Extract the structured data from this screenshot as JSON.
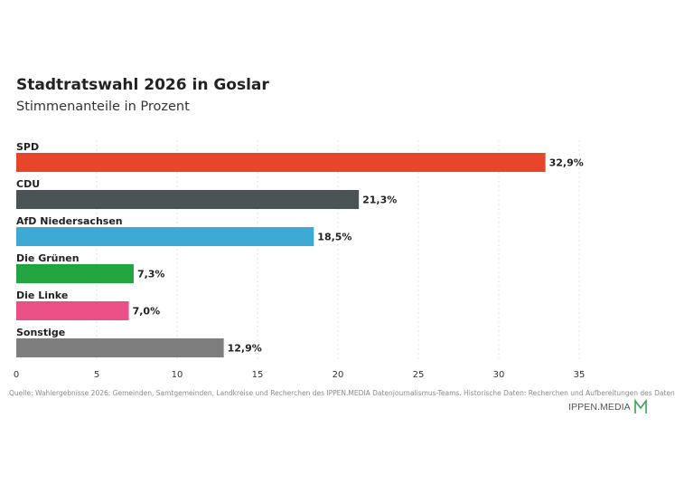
{
  "header": {
    "title": "Stadtratswahl 2026 in Goslar",
    "subtitle": "Stimmenanteile in Prozent"
  },
  "chart_data": {
    "type": "bar",
    "orientation": "horizontal",
    "title": "Stadtratswahl 2026 in Goslar",
    "subtitle": "Stimmenanteile in Prozent",
    "categories": [
      "SPD",
      "CDU",
      "AfD Niedersachsen",
      "Die Grünen",
      "Die Linke",
      "Sonstige"
    ],
    "values": [
      32.9,
      21.3,
      18.5,
      7.3,
      7.0,
      12.9
    ],
    "value_labels": [
      "32,9%",
      "21,3%",
      "18,5%",
      "7,3%",
      "7,0%",
      "12,9%"
    ],
    "colors": [
      "#e8462a",
      "#4a5355",
      "#3fa9d5",
      "#22a541",
      "#ea5086",
      "#7e7e7e"
    ],
    "xlim": [
      0,
      35
    ],
    "xticks": [
      0,
      5,
      10,
      15,
      20,
      25,
      30,
      35
    ],
    "xtick_labels": [
      "0",
      "5",
      "10",
      "15",
      "20",
      "25",
      "30",
      "35"
    ],
    "grid": "vertical-dashed",
    "legend": "none"
  },
  "footer": {
    "source": "Quelle: Wahlergebnisse 2026: Gemeinden, Samtgemeinden, Landkreise und Recherchen des IPPEN.MEDIA Datenjournalismus-Teams. Historische Daten: Recherchen und Aufbereitungen des Daten",
    "brand": "IPPEN.MEDIA",
    "brand_color": "#3aa05a"
  }
}
